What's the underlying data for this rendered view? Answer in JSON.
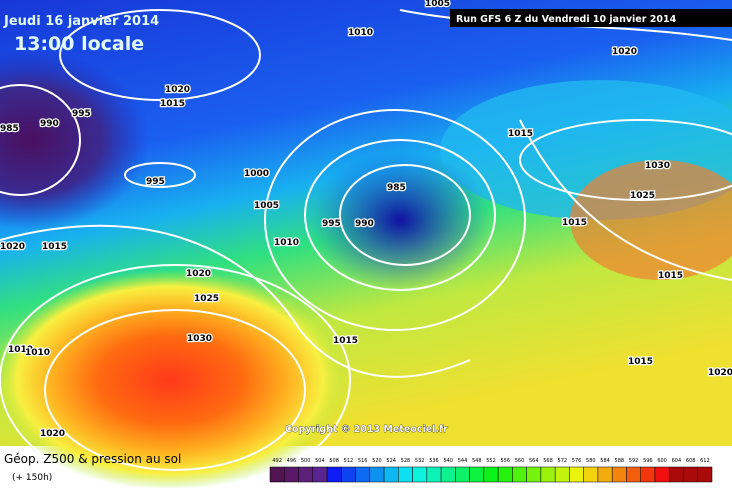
{
  "header": {
    "date": "Jeudi 16 janvier 2014",
    "time": "13:00 locale",
    "run": "Run GFS 6 Z du Vendredi 10 janvier 2014"
  },
  "map": {
    "isobar_labels": [
      "1005",
      "1010",
      "1020",
      "985",
      "990",
      "995",
      "1020",
      "1015",
      "995",
      "1000",
      "1005",
      "985",
      "990",
      "995",
      "1010",
      "1020",
      "1015",
      "1020",
      "1025",
      "1030",
      "1015",
      "1030",
      "1025",
      "1015",
      "1015",
      "1020",
      "1010",
      "1015",
      "1010",
      "1015",
      "1020"
    ],
    "copyright": "Copyright © 2013 Meteociel.fr"
  },
  "legend": {
    "title": "Géop. Z500 & pression au sol",
    "subtitle": "(+ 150h)",
    "scale": [
      492,
      496,
      500,
      504,
      508,
      512,
      516,
      520,
      524,
      528,
      532,
      536,
      540,
      544,
      548,
      552,
      556,
      560,
      564,
      568,
      572,
      576,
      580,
      584,
      588,
      592,
      596,
      600,
      604,
      608,
      612
    ]
  }
}
